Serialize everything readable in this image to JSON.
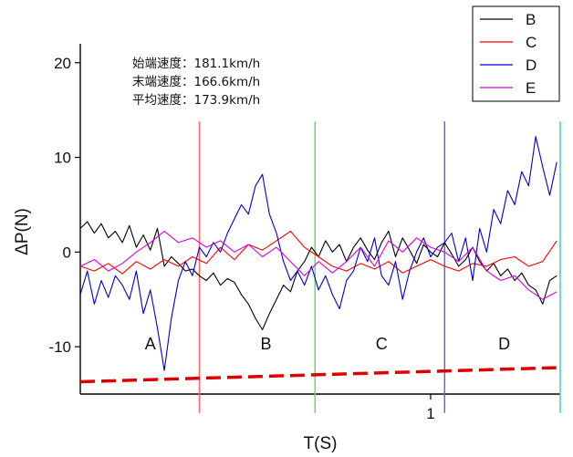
{
  "chart_data": {
    "type": "line",
    "xlabel": "T(S)",
    "ylabel": "ΔP(N)",
    "xlim": [
      0,
      1.37
    ],
    "ylim": [
      -15,
      22
    ],
    "x_ticks": [
      1
    ],
    "x_tick_labels": [
      "1"
    ],
    "y_ticks": [
      -10,
      0,
      10,
      20
    ],
    "y_tick_labels": [
      "-10",
      "0",
      "10",
      "20"
    ],
    "annotations": {
      "start_speed": "始端速度：181.1km/h",
      "end_speed": "末端速度：166.6km/h",
      "avg_speed": "平均速度：173.9km/h"
    },
    "regions": [
      {
        "label": "A",
        "x": 0.2,
        "y": -10.3
      },
      {
        "label": "B",
        "x": 0.53,
        "y": -10.3
      },
      {
        "label": "C",
        "x": 0.86,
        "y": -10.3
      },
      {
        "label": "D",
        "x": 1.21,
        "y": -10.3
      }
    ],
    "region_boundaries": [
      {
        "x": 0.34,
        "color": "#ff6666"
      },
      {
        "x": 0.67,
        "color": "#66dd66"
      },
      {
        "x": 1.04,
        "color": "#6666cc"
      },
      {
        "x": 1.37,
        "color": "#44cccc"
      }
    ],
    "trend_line": {
      "color": "#dd0000",
      "x": [
        0.0,
        1.37
      ],
      "y": [
        -13.7,
        -12.2
      ]
    },
    "legend": {
      "position": "top-right"
    },
    "series": [
      {
        "name": "B",
        "color": "#000000",
        "x": [
          0.0,
          0.02,
          0.04,
          0.06,
          0.08,
          0.1,
          0.12,
          0.14,
          0.16,
          0.18,
          0.2,
          0.22,
          0.24,
          0.26,
          0.28,
          0.3,
          0.32,
          0.34,
          0.36,
          0.38,
          0.4,
          0.42,
          0.44,
          0.46,
          0.48,
          0.5,
          0.52,
          0.54,
          0.56,
          0.58,
          0.6,
          0.62,
          0.64,
          0.66,
          0.68,
          0.7,
          0.72,
          0.74,
          0.76,
          0.78,
          0.8,
          0.82,
          0.84,
          0.86,
          0.88,
          0.9,
          0.92,
          0.94,
          0.96,
          0.98,
          1.0,
          1.02,
          1.04,
          1.06,
          1.08,
          1.1,
          1.12,
          1.14,
          1.16,
          1.18,
          1.2,
          1.22,
          1.24,
          1.26,
          1.28,
          1.3,
          1.32,
          1.34,
          1.36
        ],
        "y": [
          2.5,
          3.2,
          2.0,
          3.0,
          1.5,
          2.2,
          1.0,
          2.8,
          0.5,
          1.8,
          0.2,
          2.5,
          -1.5,
          -0.5,
          -1.2,
          -2.0,
          -1.8,
          -2.5,
          -3.0,
          -2.2,
          -3.5,
          -2.8,
          -3.2,
          -4.5,
          -5.5,
          -7.0,
          -8.2,
          -6.5,
          -5.0,
          -3.5,
          -4.2,
          -2.0,
          -1.0,
          0.5,
          -0.5,
          1.2,
          0.0,
          0.8,
          -1.0,
          0.5,
          1.5,
          0.2,
          -0.8,
          1.0,
          2.2,
          -0.5,
          1.5,
          0.2,
          -1.2,
          0.8,
          0.0,
          -0.5,
          1.0,
          -0.2,
          -1.5,
          -0.8,
          0.5,
          -1.0,
          -2.0,
          -1.2,
          -2.5,
          -1.8,
          -3.0,
          -2.2,
          -3.5,
          -4.0,
          -5.5,
          -3.0,
          -2.5
        ]
      },
      {
        "name": "C",
        "color": "#ff0000",
        "x": [
          0.0,
          0.04,
          0.08,
          0.12,
          0.16,
          0.2,
          0.24,
          0.28,
          0.32,
          0.36,
          0.4,
          0.44,
          0.48,
          0.52,
          0.56,
          0.6,
          0.64,
          0.68,
          0.72,
          0.76,
          0.8,
          0.84,
          0.88,
          0.92,
          0.96,
          1.0,
          1.04,
          1.08,
          1.12,
          1.16,
          1.2,
          1.24,
          1.28,
          1.32,
          1.36
        ],
        "y": [
          -1.5,
          -2.0,
          -1.2,
          -2.3,
          -1.0,
          -1.8,
          -0.8,
          -1.5,
          -0.5,
          -1.2,
          0.5,
          -0.8,
          0.8,
          0.2,
          1.2,
          2.2,
          0.5,
          -0.5,
          -1.5,
          -2.0,
          -1.2,
          -1.8,
          -1.0,
          -2.2,
          -1.5,
          -0.8,
          -1.5,
          -2.0,
          -1.2,
          -1.5,
          -0.8,
          -0.5,
          -1.5,
          -1.0,
          1.2
        ]
      },
      {
        "name": "D",
        "color": "#0000cc",
        "x": [
          0.0,
          0.02,
          0.04,
          0.06,
          0.08,
          0.1,
          0.12,
          0.14,
          0.16,
          0.18,
          0.2,
          0.22,
          0.24,
          0.26,
          0.28,
          0.3,
          0.32,
          0.34,
          0.36,
          0.38,
          0.4,
          0.42,
          0.44,
          0.46,
          0.48,
          0.5,
          0.52,
          0.54,
          0.56,
          0.58,
          0.6,
          0.62,
          0.64,
          0.66,
          0.68,
          0.7,
          0.72,
          0.74,
          0.76,
          0.78,
          0.8,
          0.82,
          0.84,
          0.86,
          0.88,
          0.9,
          0.92,
          0.94,
          0.96,
          0.98,
          1.0,
          1.02,
          1.04,
          1.06,
          1.08,
          1.1,
          1.12,
          1.14,
          1.16,
          1.18,
          1.2,
          1.22,
          1.24,
          1.26,
          1.28,
          1.3,
          1.32,
          1.34,
          1.36
        ],
        "y": [
          -4.5,
          -2.0,
          -5.5,
          -3.0,
          -4.8,
          -2.5,
          -3.5,
          -5.0,
          -2.0,
          -6.5,
          -4.0,
          -8.0,
          -12.5,
          -7.0,
          -3.0,
          -1.0,
          -2.5,
          0.5,
          -0.5,
          1.0,
          0.0,
          2.0,
          3.5,
          5.0,
          4.0,
          7.0,
          8.2,
          4.0,
          2.0,
          -1.0,
          -3.0,
          -2.0,
          -3.5,
          -1.5,
          -4.0,
          -2.5,
          -4.5,
          -6.0,
          -3.0,
          -2.0,
          0.5,
          -1.0,
          1.5,
          -2.5,
          -3.5,
          -1.0,
          -5.0,
          -2.0,
          0.0,
          1.5,
          -0.5,
          0.5,
          1.0,
          2.0,
          -1.0,
          1.5,
          -3.0,
          2.5,
          0.0,
          4.5,
          3.0,
          6.5,
          5.0,
          8.5,
          7.0,
          12.2,
          9.0,
          6.0,
          9.5
        ]
      },
      {
        "name": "E",
        "color": "#dd00dd",
        "x": [
          0.0,
          0.04,
          0.08,
          0.12,
          0.16,
          0.2,
          0.24,
          0.28,
          0.32,
          0.36,
          0.4,
          0.44,
          0.48,
          0.52,
          0.56,
          0.6,
          0.64,
          0.68,
          0.72,
          0.76,
          0.8,
          0.84,
          0.88,
          0.92,
          0.96,
          1.0,
          1.04,
          1.08,
          1.12,
          1.16,
          1.2,
          1.24,
          1.28,
          1.32,
          1.36
        ],
        "y": [
          -1.5,
          -0.8,
          -2.0,
          -1.2,
          0.0,
          1.0,
          2.2,
          1.0,
          1.5,
          0.5,
          1.2,
          0.0,
          0.8,
          -0.5,
          0.5,
          -1.0,
          -2.5,
          -1.0,
          -2.2,
          -1.0,
          0.5,
          -1.5,
          1.2,
          0.0,
          1.5,
          0.5,
          0.0,
          -1.0,
          0.5,
          -2.0,
          -3.0,
          -2.5,
          -4.0,
          -5.0,
          -4.2
        ]
      }
    ]
  }
}
